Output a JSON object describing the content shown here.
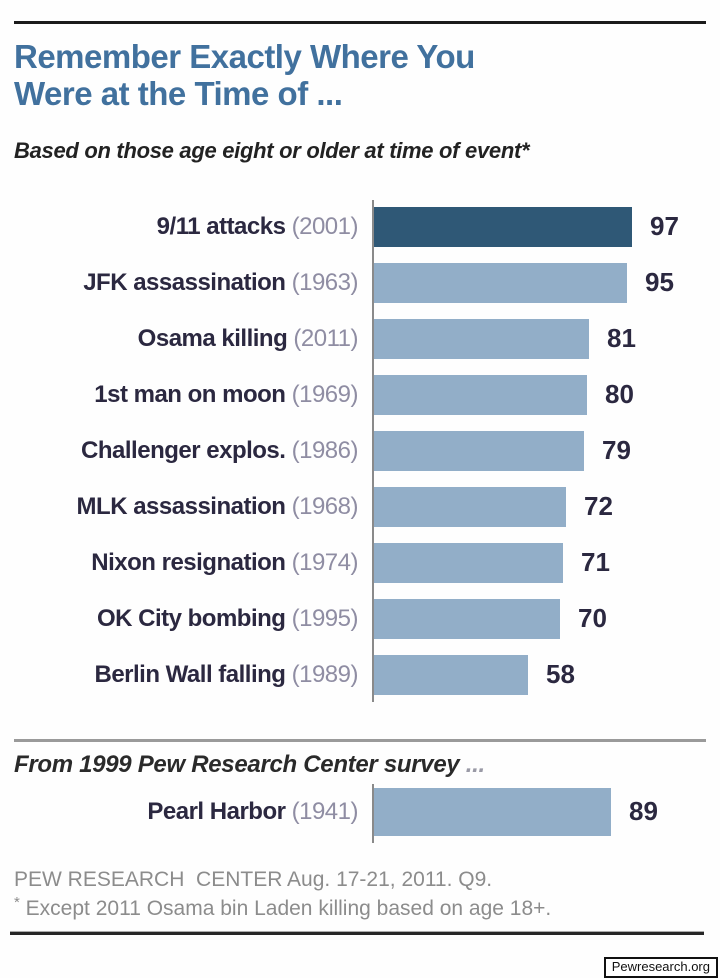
{
  "page": {
    "title_line1": "Remember Exactly Where You",
    "title_line2": "Were at the Time of ...",
    "subtitle": "Based on those age eight or older at time of event*",
    "source_line": "PEW RESEARCH  CENTER Aug. 17-21, 2011. Q9.",
    "footnote_star": "*",
    "footnote_text": " Except 2011 Osama bin Laden killing based on age 18+.",
    "site_badge": "Pewresearch.org"
  },
  "colors": {
    "title_blue": "#41719E",
    "bar_highlight": "#2F5876",
    "bar_normal": "#92AEC8",
    "label_dark": "#2B2840",
    "year_gray": "#8F8DA3",
    "footer_gray": "#8C8C8C"
  },
  "chart_data": {
    "type": "bar",
    "orientation": "horizontal",
    "title": "Remember Exactly Where You Were at the Time of ...",
    "subtitle": "Based on those age eight or older at time of event*",
    "xlim": [
      0,
      100
    ],
    "value_labels_shown": true,
    "axis_ticks_shown": false,
    "grid": false,
    "categories": [
      "9/11 attacks (2001)",
      "JFK assassination (1963)",
      "Osama killing (2011)",
      "1st man on moon (1969)",
      "Challenger explos. (1986)",
      "MLK assassination (1968)",
      "Nixon resignation (1974)",
      "OK City bombing (1995)",
      "Berlin Wall falling (1989)"
    ],
    "values": [
      97,
      95,
      81,
      80,
      79,
      72,
      71,
      70,
      58
    ],
    "main_series": [
      {
        "event": "9/11 attacks",
        "year": "(2001)",
        "value": 97,
        "highlight": true
      },
      {
        "event": "JFK assassination",
        "year": "(1963)",
        "value": 95,
        "highlight": false
      },
      {
        "event": "Osama killing",
        "year": "(2011)",
        "value": 81,
        "highlight": false
      },
      {
        "event": "1st man on moon",
        "year": "(1969)",
        "value": 80,
        "highlight": false
      },
      {
        "event": "Challenger explos.",
        "year": "(1986)",
        "value": 79,
        "highlight": false
      },
      {
        "event": "MLK assassination",
        "year": "(1968)",
        "value": 72,
        "highlight": false
      },
      {
        "event": "Nixon resignation",
        "year": "(1974)",
        "value": 71,
        "highlight": false
      },
      {
        "event": "OK City bombing",
        "year": "(1995)",
        "value": 70,
        "highlight": false
      },
      {
        "event": "Berlin Wall falling",
        "year": "(1989)",
        "value": 58,
        "highlight": false
      }
    ],
    "secondary_section": {
      "heading": "From 1999 Pew Research Center survey",
      "heading_ellipsis": " ...",
      "series": [
        {
          "event": "Pearl Harbor",
          "year": "(1941)",
          "value": 89,
          "highlight": false
        }
      ]
    }
  }
}
